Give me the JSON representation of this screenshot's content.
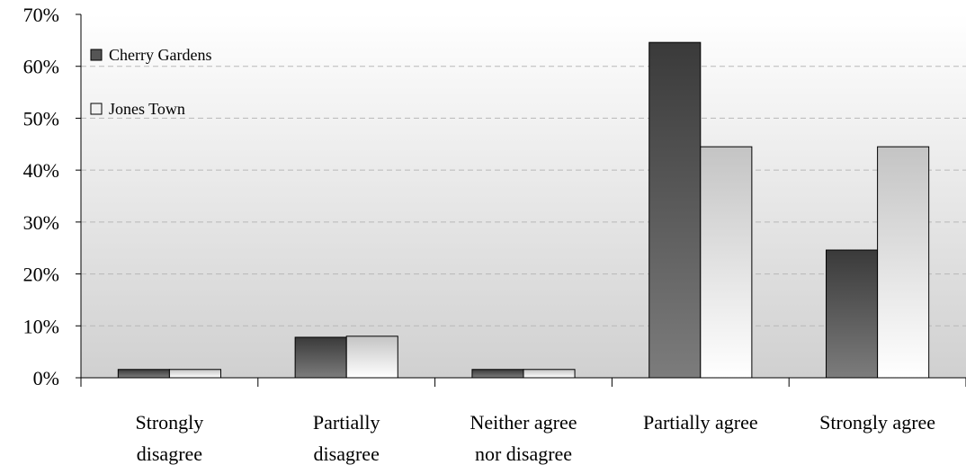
{
  "chart_data": {
    "type": "bar",
    "title": "",
    "xlabel": "",
    "ylabel": "",
    "ylim": [
      0,
      70
    ],
    "y_ticks": [
      "0%",
      "10%",
      "20%",
      "30%",
      "40%",
      "50%",
      "60%",
      "70%"
    ],
    "categories": [
      [
        "Strongly",
        "disagree"
      ],
      [
        "Partially",
        "disagree"
      ],
      [
        "Neither agree",
        "nor disagree"
      ],
      [
        "Partially agree"
      ],
      [
        "Strongly agree"
      ]
    ],
    "series": [
      {
        "name": "Cherry Gardens",
        "values": [
          1.6,
          7.8,
          1.6,
          64.6,
          24.6
        ],
        "color": "#555555"
      },
      {
        "name": "Jones Town",
        "values": [
          1.6,
          8.0,
          1.6,
          44.5,
          44.5
        ],
        "color": "#f0f0f0"
      }
    ],
    "grid": true,
    "legend": "top-left"
  }
}
